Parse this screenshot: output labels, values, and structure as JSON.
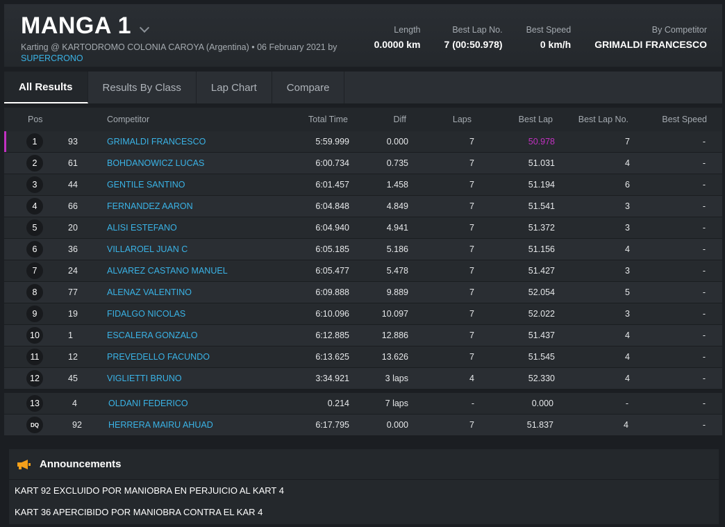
{
  "header": {
    "title": "MANGA 1",
    "subtitle_prefix": "Karting @ KARTODROMO COLONIA CAROYA (Argentina) • 06 February 2021 by",
    "subtitle_brand": "SUPERCRONO",
    "stats": [
      {
        "label": "Length",
        "value": "0.0000 km"
      },
      {
        "label": "Best Lap No.",
        "value": "7 (00:50.978)"
      },
      {
        "label": "Best Speed",
        "value": "0 km/h"
      },
      {
        "label": "By Competitor",
        "value": "GRIMALDI FRANCESCO"
      }
    ]
  },
  "tabs": [
    "All Results",
    "Results By Class",
    "Lap Chart",
    "Compare"
  ],
  "table": {
    "columns": [
      "Pos",
      "Competitor",
      "Total Time",
      "Diff",
      "Laps",
      "Best Lap",
      "Best Lap No.",
      "Best Speed"
    ],
    "rows": [
      {
        "pos": "1",
        "num": "93",
        "name": "GRIMALDI FRANCESCO",
        "total": "5:59.999",
        "diff": "0.000",
        "laps": "7",
        "best": "50.978",
        "bestno": "7",
        "speed": "-"
      },
      {
        "pos": "2",
        "num": "61",
        "name": "BOHDANOWICZ LUCAS",
        "total": "6:00.734",
        "diff": "0.735",
        "laps": "7",
        "best": "51.031",
        "bestno": "4",
        "speed": "-"
      },
      {
        "pos": "3",
        "num": "44",
        "name": "GENTILE SANTINO",
        "total": "6:01.457",
        "diff": "1.458",
        "laps": "7",
        "best": "51.194",
        "bestno": "6",
        "speed": "-"
      },
      {
        "pos": "4",
        "num": "66",
        "name": "FERNANDEZ AARON",
        "total": "6:04.848",
        "diff": "4.849",
        "laps": "7",
        "best": "51.541",
        "bestno": "3",
        "speed": "-"
      },
      {
        "pos": "5",
        "num": "20",
        "name": "ALISI ESTEFANO",
        "total": "6:04.940",
        "diff": "4.941",
        "laps": "7",
        "best": "51.372",
        "bestno": "3",
        "speed": "-"
      },
      {
        "pos": "6",
        "num": "36",
        "name": "VILLAROEL JUAN C",
        "total": "6:05.185",
        "diff": "5.186",
        "laps": "7",
        "best": "51.156",
        "bestno": "4",
        "speed": "-"
      },
      {
        "pos": "7",
        "num": "24",
        "name": "ALVAREZ CASTANO MANUEL",
        "total": "6:05.477",
        "diff": "5.478",
        "laps": "7",
        "best": "51.427",
        "bestno": "3",
        "speed": "-"
      },
      {
        "pos": "8",
        "num": "77",
        "name": "ALENAZ VALENTINO",
        "total": "6:09.888",
        "diff": "9.889",
        "laps": "7",
        "best": "52.054",
        "bestno": "5",
        "speed": "-"
      },
      {
        "pos": "9",
        "num": "19",
        "name": "FIDALGO NICOLAS",
        "total": "6:10.096",
        "diff": "10.097",
        "laps": "7",
        "best": "52.022",
        "bestno": "3",
        "speed": "-"
      },
      {
        "pos": "10",
        "num": "1",
        "name": "ESCALERA GONZALO",
        "total": "6:12.885",
        "diff": "12.886",
        "laps": "7",
        "best": "51.437",
        "bestno": "4",
        "speed": "-"
      },
      {
        "pos": "11",
        "num": "12",
        "name": "PREVEDELLO FACUNDO",
        "total": "6:13.625",
        "diff": "13.626",
        "laps": "7",
        "best": "51.545",
        "bestno": "4",
        "speed": "-"
      },
      {
        "pos": "12",
        "num": "45",
        "name": "VIGLIETTI BRUNO",
        "total": "3:34.921",
        "diff": "3 laps",
        "laps": "4",
        "best": "52.330",
        "bestno": "4",
        "speed": "-"
      }
    ],
    "extra_rows": [
      {
        "pos": "13",
        "num": "4",
        "name": "OLDANI FEDERICO",
        "total": "0.214",
        "diff": "7 laps",
        "laps": "-",
        "best": "0.000",
        "bestno": "-",
        "speed": "-"
      },
      {
        "pos": "DQ",
        "num": "92",
        "name": "HERRERA MAIRU AHUAD",
        "total": "6:17.795",
        "diff": "0.000",
        "laps": "7",
        "best": "51.837",
        "bestno": "4",
        "speed": "-"
      }
    ]
  },
  "announcements": {
    "title": "Announcements",
    "items": [
      "KART 92 EXCLUIDO POR MANIOBRA EN PERJUICIO AL KART 4",
      "KART 36 APERCIBIDO POR MANIOBRA CONTRA EL KAR 4"
    ]
  },
  "colors": {
    "accent_blue": "#3ab3e6",
    "best_lap_purple": "#c231c2"
  },
  "icons": {
    "title_dropdown": "chevron-down-icon",
    "announcements": "megaphone-icon"
  }
}
